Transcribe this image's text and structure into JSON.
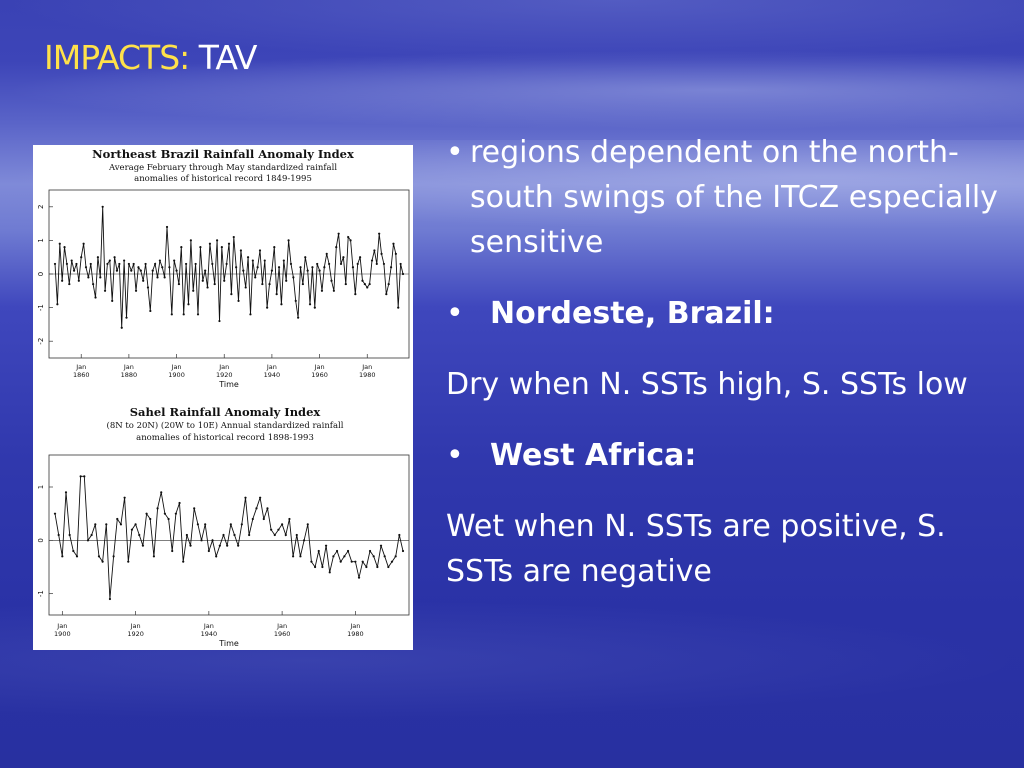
{
  "slide": {
    "title_highlight": "IMPACTS:",
    "title_rest": " TAV"
  },
  "figure": {
    "chart1": {
      "title_line1": "Northeast Brazil Rainfall Anomaly Index",
      "title_line2": "Average February through May standardized rainfall",
      "title_line3": "anomalies of historical record 1849-1995",
      "x_ticks": [
        "Jan\n1860",
        "Jan\n1880",
        "Jan\n1900",
        "Jan\n1920",
        "Jan\n1940",
        "Jan\n1960",
        "Jan\n1980"
      ],
      "x_tick_top": [
        "Jan",
        "Jan",
        "Jan",
        "Jan",
        "Jan",
        "Jan",
        "Jan"
      ],
      "x_tick_bottom": [
        "1860",
        "1880",
        "1900",
        "1920",
        "1940",
        "1960",
        "1980"
      ],
      "y_ticks": [
        "2",
        "1",
        "0",
        "-1",
        "-2"
      ],
      "xlabel": "Time"
    },
    "chart2": {
      "title_line1": "Sahel Rainfall Anomaly Index",
      "title_line2": "(8N to 20N) (20W to 10E) Annual standardized rainfall",
      "title_line3": "anomalies of historical record 1898-1993",
      "x_tick_top": [
        "Jan",
        "Jan",
        "Jan",
        "Jan",
        "Jan"
      ],
      "x_tick_bottom": [
        "1900",
        "1920",
        "1940",
        "1960",
        "1980"
      ],
      "y_ticks": [
        "1",
        "0",
        "-1"
      ],
      "xlabel": "Time"
    }
  },
  "text": {
    "bullet_symbol": "•",
    "bullet1": "regions dependent on the north-south swings of the ITCZ especially sensitive",
    "bullet2_heading": "Nordeste, Brazil:",
    "bullet2_body": "Dry when N. SSTs high, S. SSTs low",
    "bullet3_heading": "West Africa:",
    "bullet3_body": "Wet when N. SSTs are positive, S. SSTs are negative"
  },
  "chart_data": [
    {
      "type": "line",
      "title": "Northeast Brazil Rainfall Anomaly Index",
      "xlabel": "Time",
      "ylabel": "",
      "ylim": [
        -2.5,
        2.5
      ],
      "xlim": [
        1849,
        1995
      ],
      "grid": false,
      "series": [
        {
          "x": [
            1849,
            1850,
            1851,
            1852,
            1853,
            1854,
            1855,
            1856,
            1857,
            1858,
            1859,
            1860,
            1861,
            1862,
            1863,
            1864,
            1865,
            1866,
            1867,
            1868,
            1869,
            1870,
            1871,
            1872,
            1873,
            1874,
            1875,
            1876,
            1877,
            1878,
            1879,
            1880,
            1881,
            1882,
            1883,
            1884,
            1885,
            1886,
            1887,
            1888,
            1889,
            1890,
            1891,
            1892,
            1893,
            1894,
            1895,
            1896,
            1897,
            1898,
            1899,
            1900,
            1901,
            1902,
            1903,
            1904,
            1905,
            1906,
            1907,
            1908,
            1909,
            1910,
            1911,
            1912,
            1913,
            1914,
            1915,
            1916,
            1917,
            1918,
            1919,
            1920,
            1921,
            1922,
            1923,
            1924,
            1925,
            1926,
            1927,
            1928,
            1929,
            1930,
            1931,
            1932,
            1933,
            1934,
            1935,
            1936,
            1937,
            1938,
            1939,
            1940,
            1941,
            1942,
            1943,
            1944,
            1945,
            1946,
            1947,
            1948,
            1949,
            1950,
            1951,
            1952,
            1953,
            1954,
            1955,
            1956,
            1957,
            1958,
            1959,
            1960,
            1961,
            1962,
            1963,
            1964,
            1965,
            1966,
            1967,
            1968,
            1969,
            1970,
            1971,
            1972,
            1973,
            1974,
            1975,
            1976,
            1977,
            1978,
            1979,
            1980,
            1981,
            1982,
            1983,
            1984,
            1985,
            1986,
            1987,
            1988,
            1989,
            1990,
            1991,
            1992,
            1993,
            1994,
            1995
          ],
          "y": [
            0.3,
            -0.9,
            0.9,
            -0.2,
            0.8,
            0.3,
            -0.3,
            0.4,
            0.1,
            0.3,
            -0.2,
            0.5,
            0.9,
            0.2,
            -0.1,
            0.3,
            -0.3,
            -0.7,
            0.5,
            -0.1,
            2.0,
            -0.5,
            0.3,
            0.4,
            -0.8,
            0.5,
            0.1,
            0.3,
            -1.6,
            0.4,
            -1.3,
            0.3,
            0.1,
            0.3,
            -0.5,
            0.2,
            0.1,
            -0.2,
            0.3,
            -0.4,
            -1.1,
            0.1,
            0.3,
            -0.1,
            0.4,
            0.2,
            -0.1,
            1.4,
            0.2,
            -1.2,
            0.4,
            0.1,
            -0.3,
            0.8,
            -1.2,
            0.3,
            -0.9,
            1.0,
            -0.5,
            0.3,
            -1.2,
            0.8,
            -0.2,
            0.1,
            -0.4,
            0.9,
            0.3,
            -0.3,
            1.0,
            -1.4,
            0.8,
            -0.2,
            0.3,
            0.9,
            -0.6,
            1.1,
            0.2,
            -0.8,
            0.7,
            0.1,
            -0.4,
            0.5,
            -1.2,
            0.4,
            -0.1,
            0.2,
            0.7,
            -0.3,
            0.4,
            -1.0,
            -0.3,
            0.1,
            0.8,
            -0.6,
            0.2,
            -0.9,
            0.4,
            -0.2,
            1.0,
            0.3,
            -0.1,
            -0.8,
            -1.3,
            0.2,
            -0.3,
            0.5,
            0.1,
            -0.9,
            0.2,
            -1.0,
            0.3,
            0.1,
            -0.5,
            0.2,
            0.6,
            0.3,
            -0.2,
            -0.5,
            0.8,
            1.2,
            0.3,
            0.5,
            -0.3,
            1.1,
            1.0,
            0.2,
            -0.6,
            0.3,
            0.5,
            -0.2,
            -0.3,
            -0.4,
            -0.3,
            0.4,
            0.7,
            0.3,
            1.2,
            0.6,
            0.3,
            -0.6,
            -0.3,
            0.2,
            0.9,
            0.6,
            -1.0,
            0.3,
            0.0
          ]
        }
      ]
    },
    {
      "type": "line",
      "title": "Sahel Rainfall Anomaly Index",
      "xlabel": "Time",
      "ylabel": "",
      "ylim": [
        -1.4,
        1.6
      ],
      "xlim": [
        1898,
        1993
      ],
      "grid": false,
      "series": [
        {
          "x": [
            1898,
            1899,
            1900,
            1901,
            1902,
            1903,
            1904,
            1905,
            1906,
            1907,
            1908,
            1909,
            1910,
            1911,
            1912,
            1913,
            1914,
            1915,
            1916,
            1917,
            1918,
            1919,
            1920,
            1921,
            1922,
            1923,
            1924,
            1925,
            1926,
            1927,
            1928,
            1929,
            1930,
            1931,
            1932,
            1933,
            1934,
            1935,
            1936,
            1937,
            1938,
            1939,
            1940,
            1941,
            1942,
            1943,
            1944,
            1945,
            1946,
            1947,
            1948,
            1949,
            1950,
            1951,
            1952,
            1953,
            1954,
            1955,
            1956,
            1957,
            1958,
            1959,
            1960,
            1961,
            1962,
            1963,
            1964,
            1965,
            1966,
            1967,
            1968,
            1969,
            1970,
            1971,
            1972,
            1973,
            1974,
            1975,
            1976,
            1977,
            1978,
            1979,
            1980,
            1981,
            1982,
            1983,
            1984,
            1985,
            1986,
            1987,
            1988,
            1989,
            1990,
            1991,
            1992,
            1993
          ],
          "y": [
            0.5,
            0.1,
            -0.3,
            0.9,
            0.1,
            -0.2,
            -0.3,
            1.2,
            1.2,
            0.0,
            0.1,
            0.3,
            -0.3,
            -0.4,
            0.3,
            -1.1,
            -0.3,
            0.4,
            0.3,
            0.8,
            -0.4,
            0.2,
            0.3,
            0.1,
            -0.1,
            0.5,
            0.4,
            -0.3,
            0.6,
            0.9,
            0.5,
            0.4,
            -0.2,
            0.5,
            0.7,
            -0.4,
            0.1,
            -0.1,
            0.6,
            0.3,
            0.0,
            0.3,
            -0.2,
            0.0,
            -0.3,
            -0.1,
            0.1,
            -0.1,
            0.3,
            0.1,
            -0.1,
            0.3,
            0.8,
            0.1,
            0.4,
            0.6,
            0.8,
            0.4,
            0.6,
            0.2,
            0.1,
            0.2,
            0.3,
            0.1,
            0.4,
            -0.3,
            0.1,
            -0.3,
            0.0,
            0.3,
            -0.4,
            -0.5,
            -0.2,
            -0.5,
            -0.1,
            -0.6,
            -0.3,
            -0.2,
            -0.4,
            -0.3,
            -0.2,
            -0.4,
            -0.4,
            -0.7,
            -0.4,
            -0.5,
            -0.2,
            -0.3,
            -0.5,
            -0.1,
            -0.3,
            -0.5,
            -0.4,
            -0.3,
            0.1,
            -0.2
          ]
        }
      ]
    }
  ]
}
